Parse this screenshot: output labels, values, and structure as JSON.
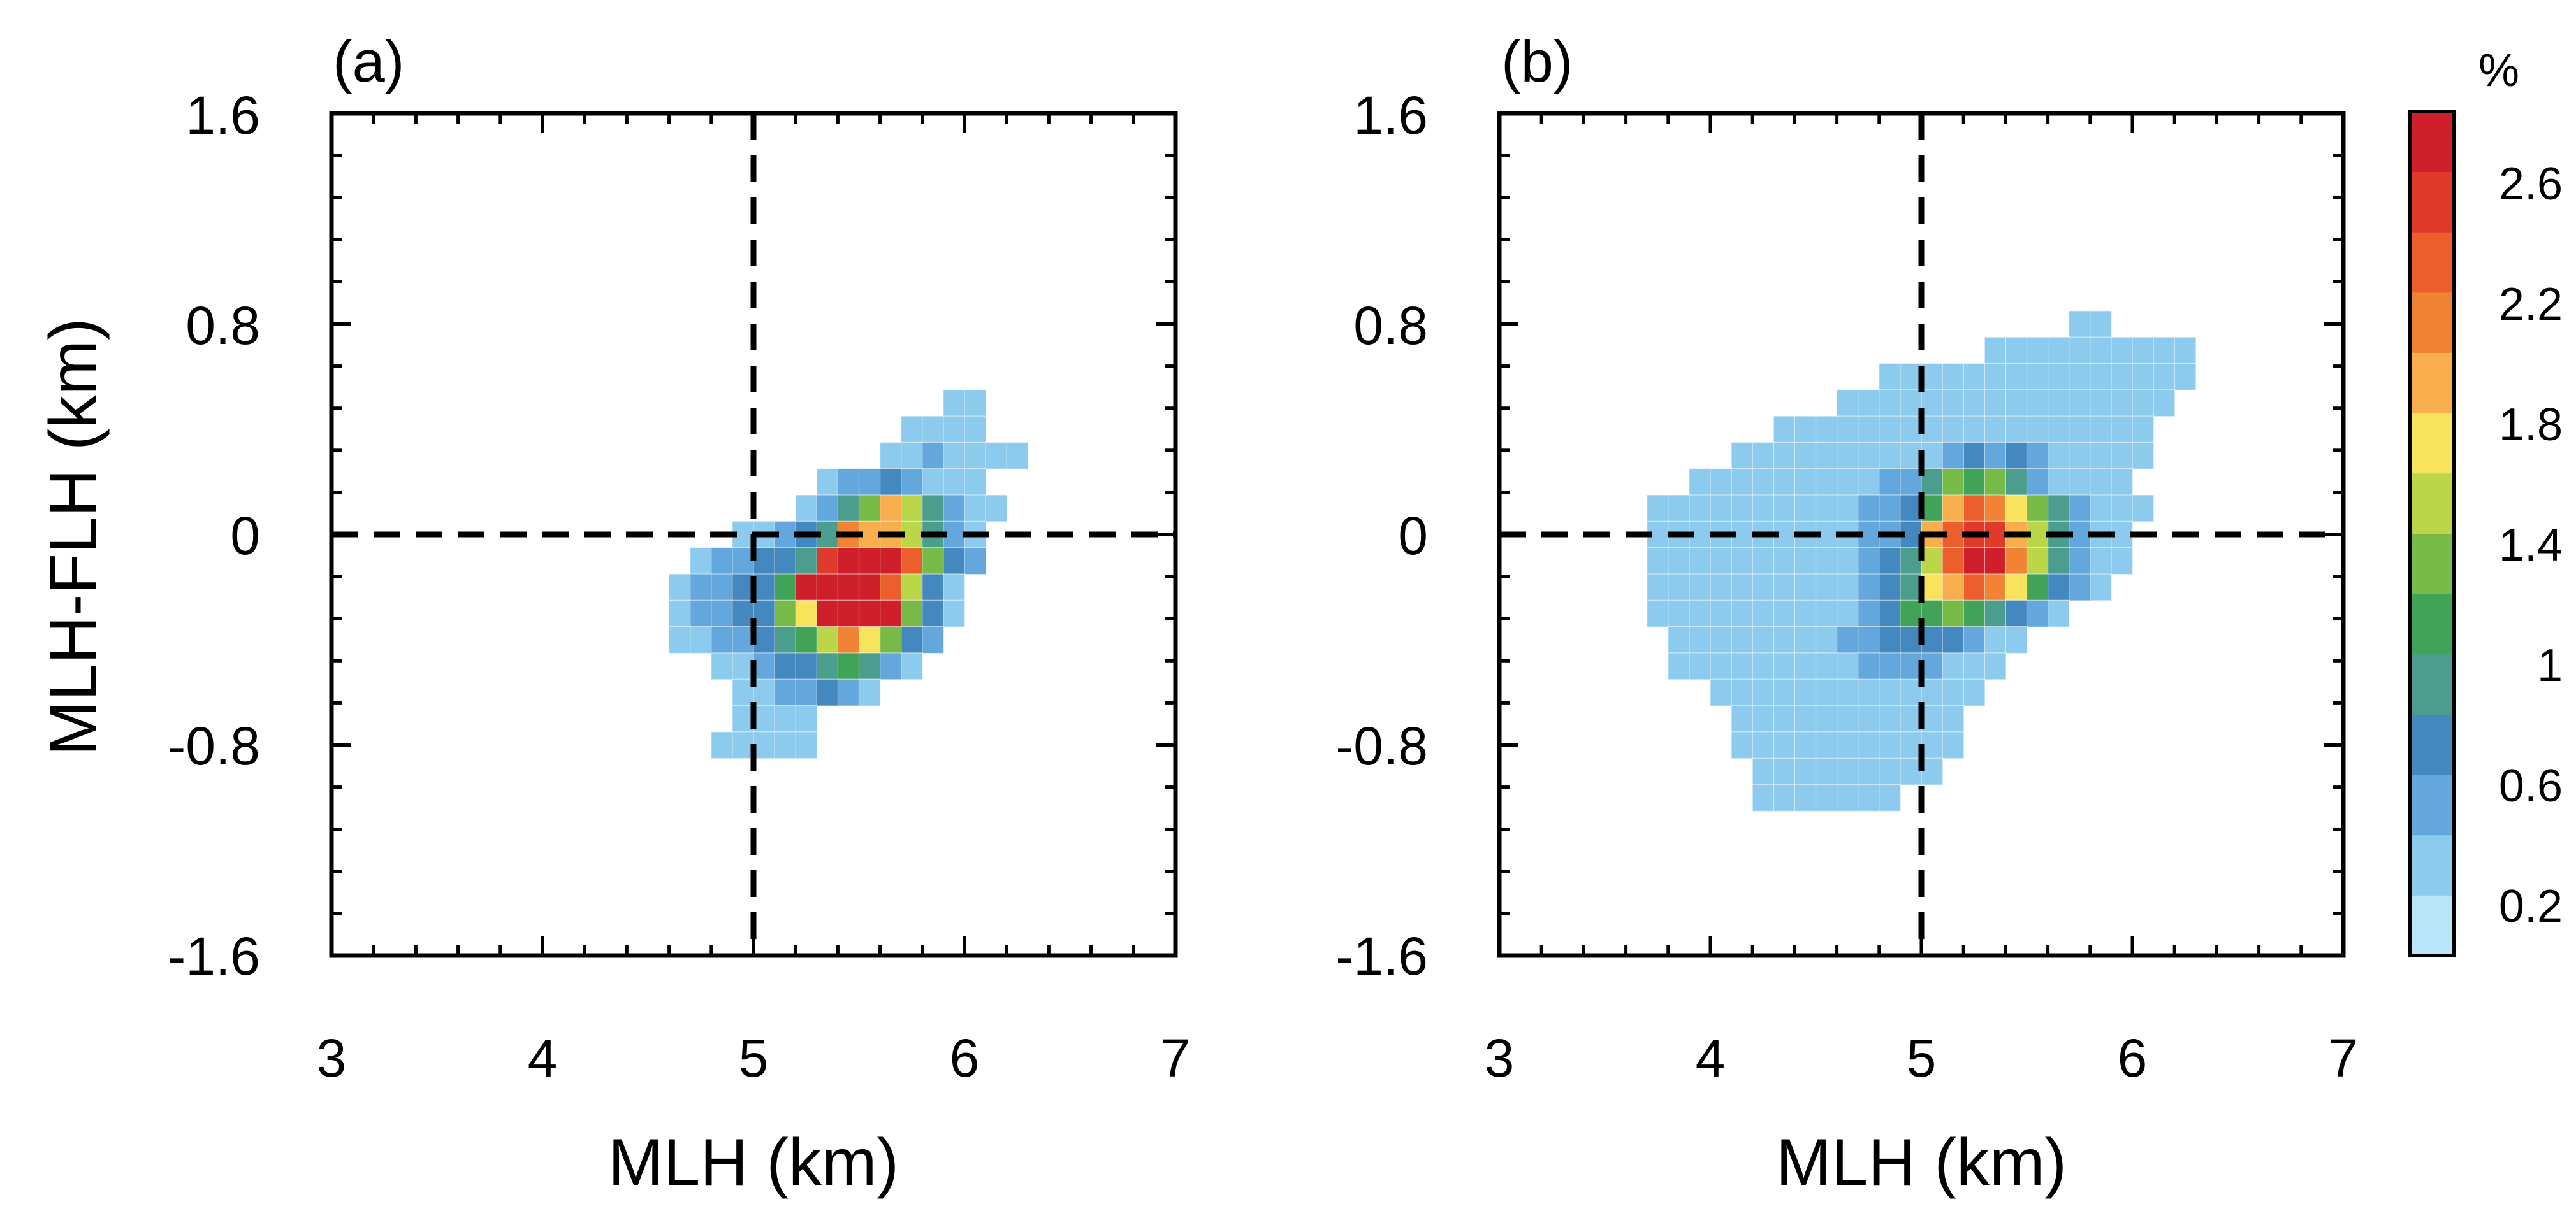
{
  "chart_data": {
    "type": "heatmap",
    "colorbar": {
      "unit": "%",
      "tick_labels": [
        "0.2",
        "0.6",
        "1",
        "1.4",
        "1.8",
        "2.2",
        "2.6"
      ],
      "levels": [
        0.0,
        0.2,
        0.4,
        0.6,
        0.8,
        1.0,
        1.2,
        1.4,
        1.6,
        1.8,
        2.0,
        2.2,
        2.4,
        2.6,
        2.8
      ],
      "colors": [
        "#b9e6f8",
        "#8ccbee",
        "#63a7dc",
        "#4488c0",
        "#4b9e8e",
        "#41a357",
        "#78ba47",
        "#bcd64a",
        "#f7e35c",
        "#f8ae4c",
        "#f18434",
        "#ec5f2c",
        "#e03a2a",
        "#cf1f2a"
      ]
    },
    "panels": [
      {
        "label": "(a)",
        "xlabel": "MLH (km)",
        "ylabel": "MLH-FLH (km)",
        "xlim": [
          3,
          7
        ],
        "ylim": [
          -1.6,
          1.6
        ],
        "x_ticks": [
          "3",
          "4",
          "5",
          "6",
          "7"
        ],
        "y_ticks": [
          "1.6",
          "0.8",
          "0",
          "-0.8",
          "-1.6"
        ],
        "reference_lines": {
          "x": 5,
          "y": 0
        },
        "bin_size": {
          "x": 0.1,
          "y": 0.1
        },
        "rows": [
          {
            "y": 0.5,
            "x0": 5.9,
            "vals": [
              0.3,
              0.3
            ]
          },
          {
            "y": 0.4,
            "x0": 5.7,
            "vals": [
              0.3,
              0.3,
              0.3,
              0.3
            ]
          },
          {
            "y": 0.3,
            "x0": 5.6,
            "vals": [
              0.3,
              0.3,
              0.5,
              0.3,
              0.3,
              0.3,
              0.2
            ]
          },
          {
            "y": 0.2,
            "x0": 5.3,
            "vals": [
              0.3,
              0.4,
              0.5,
              0.7,
              0.5,
              0.3,
              0.3,
              0.2
            ]
          },
          {
            "y": 0.1,
            "x0": 5.2,
            "vals": [
              0.3,
              0.4,
              0.8,
              1.2,
              1.8,
              1.4,
              0.8,
              0.4,
              0.3,
              0.3
            ]
          },
          {
            "y": 0.0,
            "x0": 4.9,
            "vals": [
              0.3,
              0.3,
              0.4,
              0.6,
              0.9,
              2.0,
              1.9,
              1.8,
              1.4,
              0.8,
              0.5,
              0.3
            ]
          },
          {
            "y": -0.1,
            "x0": 4.7,
            "vals": [
              0.3,
              0.4,
              0.5,
              0.6,
              0.7,
              0.9,
              2.4,
              2.7,
              2.7,
              2.6,
              2.2,
              1.2,
              0.6,
              0.4
            ]
          },
          {
            "y": -0.2,
            "x0": 4.6,
            "vals": [
              0.3,
              0.4,
              0.5,
              0.6,
              0.7,
              1.1,
              2.6,
              2.8,
              2.7,
              2.8,
              2.3,
              1.5,
              0.7,
              0.3
            ]
          },
          {
            "y": -0.3,
            "x0": 4.6,
            "vals": [
              0.3,
              0.4,
              0.5,
              0.6,
              0.7,
              1.2,
              1.6,
              2.7,
              2.8,
              2.6,
              2.6,
              1.3,
              0.6,
              0.3
            ]
          },
          {
            "y": -0.4,
            "x0": 4.6,
            "vals": [
              0.2,
              0.3,
              0.4,
              0.5,
              0.6,
              0.8,
              1.1,
              1.5,
              2.0,
              1.7,
              1.2,
              0.7,
              0.4
            ]
          },
          {
            "y": -0.5,
            "x0": 4.8,
            "vals": [
              0.3,
              0.3,
              0.4,
              0.6,
              0.7,
              0.9,
              1.1,
              0.8,
              0.5,
              0.3
            ]
          },
          {
            "y": -0.6,
            "x0": 4.9,
            "vals": [
              0.3,
              0.3,
              0.4,
              0.4,
              0.6,
              0.5,
              0.3
            ]
          },
          {
            "y": -0.7,
            "x0": 4.9,
            "vals": [
              0.2,
              0.3,
              0.3,
              0.3
            ]
          },
          {
            "y": -0.8,
            "x0": 4.8,
            "vals": [
              0.2,
              0.2,
              0.2,
              0.2,
              0.2
            ]
          }
        ]
      },
      {
        "label": "(b)",
        "xlabel": "MLH (km)",
        "ylabel": "",
        "xlim": [
          3,
          7
        ],
        "ylim": [
          -1.6,
          1.6
        ],
        "x_ticks": [
          "3",
          "4",
          "5",
          "6",
          "7"
        ],
        "y_ticks": [
          "1.6",
          "0.8",
          "0",
          "-0.8",
          "-1.6"
        ],
        "reference_lines": {
          "x": 5,
          "y": 0
        },
        "bin_size": {
          "x": 0.1,
          "y": 0.1
        },
        "rows": [
          {
            "y": 0.8,
            "x0": 5.7,
            "vals": [
              0.2,
              0.2
            ]
          },
          {
            "y": 0.7,
            "x0": 5.3,
            "vals": [
              0.2,
              0.2,
              0.2,
              0.2,
              0.2,
              0.2,
              0.2,
              0.2,
              0.2,
              0.2
            ]
          },
          {
            "y": 0.6,
            "x0": 4.8,
            "vals": [
              0.2,
              0.2,
              0.2,
              0.2,
              0.2,
              0.2,
              0.2,
              0.2,
              0.2,
              0.2,
              0.2,
              0.2,
              0.2,
              0.2,
              0.2
            ]
          },
          {
            "y": 0.5,
            "x0": 4.6,
            "vals": [
              0.2,
              0.2,
              0.2,
              0.2,
              0.2,
              0.2,
              0.2,
              0.2,
              0.2,
              0.2,
              0.2,
              0.2,
              0.2,
              0.2,
              0.2,
              0.2
            ]
          },
          {
            "y": 0.4,
            "x0": 4.3,
            "vals": [
              0.2,
              0.2,
              0.2,
              0.2,
              0.2,
              0.2,
              0.2,
              0.2,
              0.2,
              0.2,
              0.2,
              0.3,
              0.2,
              0.2,
              0.2,
              0.2,
              0.2,
              0.2
            ]
          },
          {
            "y": 0.3,
            "x0": 4.1,
            "vals": [
              0.2,
              0.2,
              0.2,
              0.2,
              0.2,
              0.2,
              0.2,
              0.3,
              0.3,
              0.3,
              0.5,
              0.6,
              0.5,
              0.6,
              0.5,
              0.3,
              0.2,
              0.2,
              0.2,
              0.2
            ]
          },
          {
            "y": 0.2,
            "x0": 3.9,
            "vals": [
              0.2,
              0.2,
              0.2,
              0.2,
              0.2,
              0.2,
              0.2,
              0.3,
              0.3,
              0.4,
              0.5,
              0.8,
              1.2,
              1.1,
              1.2,
              0.9,
              0.5,
              0.3,
              0.2,
              0.2,
              0.2
            ]
          },
          {
            "y": 0.1,
            "x0": 3.7,
            "vals": [
              0.2,
              0.2,
              0.2,
              0.2,
              0.2,
              0.2,
              0.2,
              0.2,
              0.2,
              0.3,
              0.4,
              0.5,
              0.7,
              1.1,
              1.8,
              2.2,
              2.0,
              1.7,
              1.3,
              0.8,
              0.5,
              0.3,
              0.2,
              0.2
            ]
          },
          {
            "y": 0.0,
            "x0": 3.7,
            "vals": [
              0.2,
              0.2,
              0.2,
              0.2,
              0.2,
              0.2,
              0.2,
              0.2,
              0.2,
              0.3,
              0.4,
              0.5,
              0.7,
              1.8,
              2.3,
              2.4,
              2.4,
              1.9,
              1.4,
              0.9,
              0.5,
              0.3,
              0.2
            ]
          },
          {
            "y": -0.1,
            "x0": 3.7,
            "vals": [
              0.2,
              0.2,
              0.2,
              0.2,
              0.2,
              0.2,
              0.2,
              0.2,
              0.3,
              0.3,
              0.4,
              0.6,
              0.9,
              1.5,
              2.2,
              2.8,
              2.7,
              2.0,
              1.5,
              0.9,
              0.5,
              0.3,
              0.2
            ]
          },
          {
            "y": -0.2,
            "x0": 3.7,
            "vals": [
              0.2,
              0.2,
              0.2,
              0.2,
              0.2,
              0.2,
              0.2,
              0.2,
              0.3,
              0.3,
              0.4,
              0.6,
              0.9,
              1.7,
              1.9,
              2.2,
              2.1,
              1.7,
              1.1,
              0.7,
              0.4,
              0.2
            ]
          },
          {
            "y": -0.3,
            "x0": 3.7,
            "vals": [
              0.2,
              0.2,
              0.2,
              0.2,
              0.2,
              0.2,
              0.2,
              0.2,
              0.2,
              0.3,
              0.4,
              0.6,
              1.1,
              1.1,
              1.3,
              1.1,
              0.9,
              0.6,
              0.4,
              0.3
            ]
          },
          {
            "y": -0.4,
            "x0": 3.8,
            "vals": [
              0.2,
              0.2,
              0.2,
              0.2,
              0.2,
              0.2,
              0.2,
              0.3,
              0.4,
              0.5,
              0.6,
              0.7,
              0.7,
              0.6,
              0.4,
              0.3,
              0.2
            ]
          },
          {
            "y": -0.5,
            "x0": 3.8,
            "vals": [
              0.2,
              0.2,
              0.2,
              0.2,
              0.2,
              0.2,
              0.2,
              0.3,
              0.3,
              0.4,
              0.5,
              0.5,
              0.4,
              0.3,
              0.2,
              0.2
            ]
          },
          {
            "y": -0.6,
            "x0": 4.0,
            "vals": [
              0.2,
              0.2,
              0.2,
              0.2,
              0.2,
              0.2,
              0.3,
              0.3,
              0.3,
              0.3,
              0.2,
              0.2,
              0.2
            ]
          },
          {
            "y": -0.7,
            "x0": 4.1,
            "vals": [
              0.2,
              0.2,
              0.2,
              0.2,
              0.2,
              0.2,
              0.2,
              0.2,
              0.2,
              0.2,
              0.2
            ]
          },
          {
            "y": -0.8,
            "x0": 4.1,
            "vals": [
              0.2,
              0.2,
              0.2,
              0.2,
              0.2,
              0.2,
              0.2,
              0.2,
              0.2,
              0.2,
              0.2
            ]
          },
          {
            "y": -0.9,
            "x0": 4.2,
            "vals": [
              0.2,
              0.2,
              0.2,
              0.2,
              0.2,
              0.2,
              0.2,
              0.2,
              0.2
            ]
          },
          {
            "y": -1.0,
            "x0": 4.2,
            "vals": [
              0.2,
              0.2,
              0.2,
              0.2,
              0.2,
              0.2,
              0.2
            ]
          }
        ]
      }
    ]
  }
}
